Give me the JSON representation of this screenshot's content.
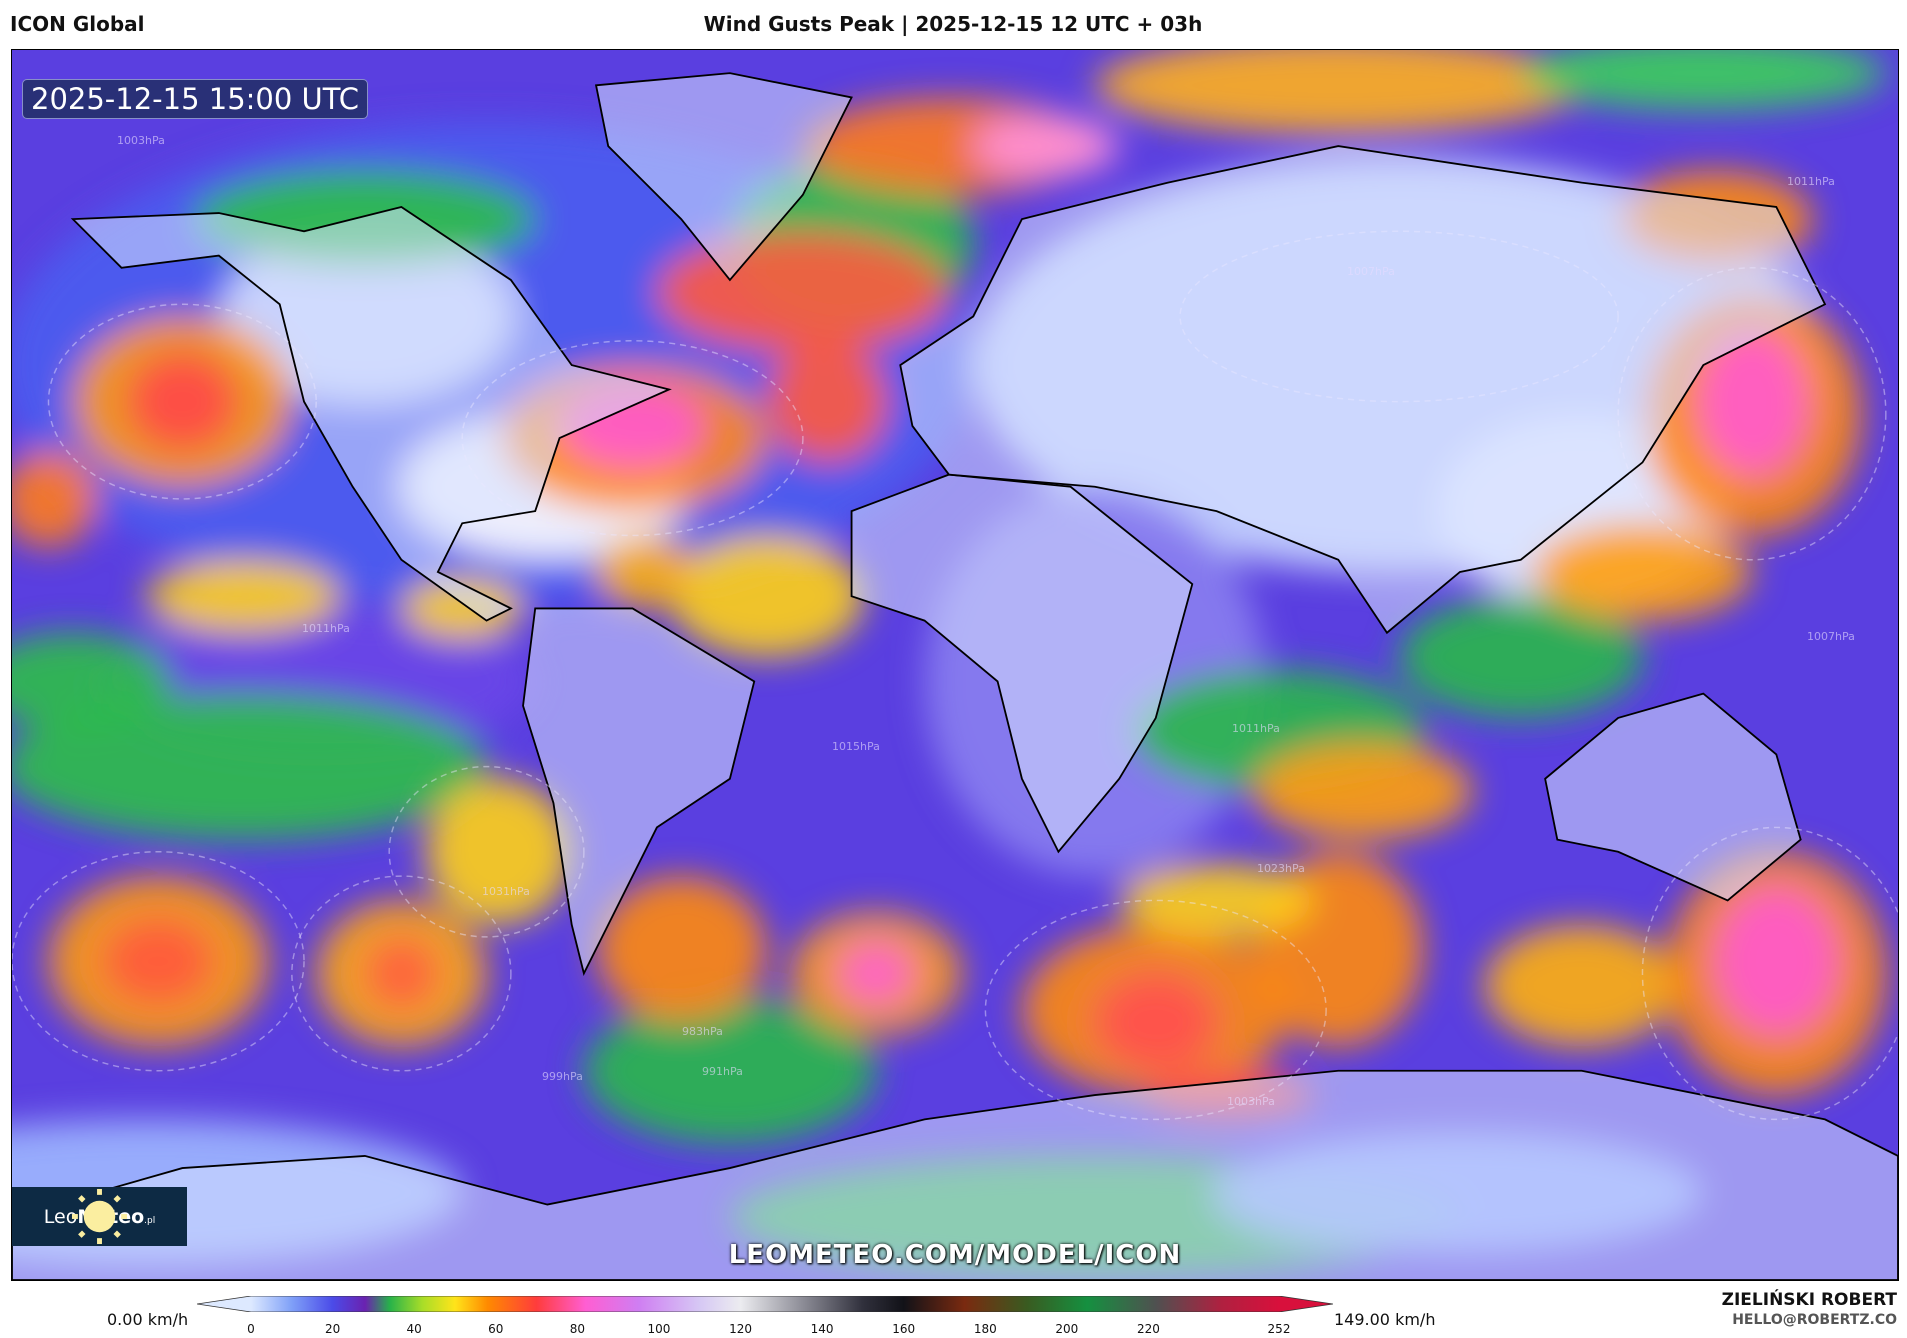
{
  "header": {
    "model": "ICON Global",
    "title": "Wind Gusts Peak | 2025-12-15 12 UTC + 03h"
  },
  "map": {
    "valid_time": "2025-12-15 15:00 UTC",
    "watermark": "LEOMETEO.COM/MODEL/ICON",
    "logo": {
      "part1": "Leo",
      "part2": "Meteo",
      "suffix": ".pl"
    },
    "pressure_labels": [
      "1003hPa",
      "1011hPa",
      "1007hPa",
      "1011hPa",
      "1007hPa",
      "1015hPa",
      "1011hPa",
      "1023hPa",
      "1031hPa",
      "991hPa",
      "983hPa",
      "999hPa",
      "1003hPa"
    ]
  },
  "colorbar": {
    "min_label": "0.00 km/h",
    "max_label": "149.00 km/h",
    "unit": "km/h",
    "ticks": [
      "0",
      "20",
      "40",
      "60",
      "80",
      "100",
      "120",
      "140",
      "160",
      "180",
      "200",
      "220",
      "252"
    ],
    "stops": [
      {
        "v": 0,
        "c": "#dde9ff"
      },
      {
        "v": 10,
        "c": "#7fa0f8"
      },
      {
        "v": 20,
        "c": "#4b4be8"
      },
      {
        "v": 28,
        "c": "#6a22b0"
      },
      {
        "v": 34,
        "c": "#27b24a"
      },
      {
        "v": 42,
        "c": "#a8dd28"
      },
      {
        "v": 50,
        "c": "#ffe41a"
      },
      {
        "v": 58,
        "c": "#ff8a00"
      },
      {
        "v": 70,
        "c": "#ff3c3c"
      },
      {
        "v": 82,
        "c": "#ff5ed2"
      },
      {
        "v": 95,
        "c": "#cf7ef2"
      },
      {
        "v": 110,
        "c": "#d6c8f4"
      },
      {
        "v": 120,
        "c": "#ececf0"
      },
      {
        "v": 135,
        "c": "#8e8e98"
      },
      {
        "v": 150,
        "c": "#30303c"
      },
      {
        "v": 160,
        "c": "#121218"
      },
      {
        "v": 175,
        "c": "#7a2a10"
      },
      {
        "v": 190,
        "c": "#3a5a20"
      },
      {
        "v": 205,
        "c": "#159040"
      },
      {
        "v": 222,
        "c": "#505050"
      },
      {
        "v": 238,
        "c": "#b02040"
      },
      {
        "v": 252,
        "c": "#d8103c"
      }
    ]
  },
  "credits": {
    "author": "ZIELIŃSKI ROBERT",
    "email": "HELLO@ROBERTZ.CO"
  }
}
